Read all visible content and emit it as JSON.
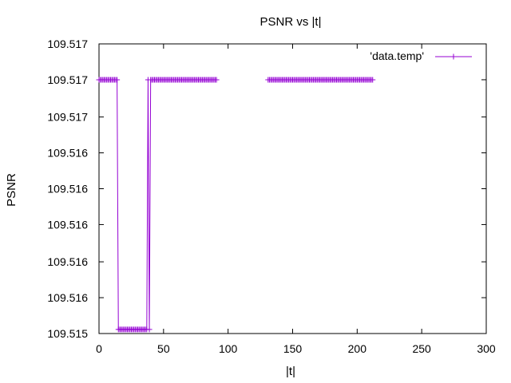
{
  "chart_data": {
    "type": "line",
    "title": "PSNR vs |t|",
    "xlabel": "|t|",
    "ylabel": "PSNR",
    "xlim": [
      0,
      300
    ],
    "ylim": [
      109.51497,
      109.51707
    ],
    "x_ticks": [
      {
        "value": 0,
        "label": "0"
      },
      {
        "value": 50,
        "label": "50"
      },
      {
        "value": 100,
        "label": "100"
      },
      {
        "value": 150,
        "label": "150"
      },
      {
        "value": 200,
        "label": "200"
      },
      {
        "value": 250,
        "label": "250"
      },
      {
        "value": 300,
        "label": "300"
      }
    ],
    "y_ticks": [
      {
        "value": 109.51497,
        "label": "109.515"
      },
      {
        "value": 109.51523,
        "label": "109.516"
      },
      {
        "value": 109.51549,
        "label": "109.516"
      },
      {
        "value": 109.51576,
        "label": "109.516"
      },
      {
        "value": 109.51602,
        "label": "109.516"
      },
      {
        "value": 109.51628,
        "label": "109.516"
      },
      {
        "value": 109.51654,
        "label": "109.517"
      },
      {
        "value": 109.51681,
        "label": "109.517"
      },
      {
        "value": 109.51707,
        "label": "109.517"
      }
    ],
    "legend_position": "top-right",
    "grid": false,
    "series": [
      {
        "name": "'data.temp'",
        "color": "#9400d3",
        "marker": "plus",
        "segments": [
          {
            "x_start": 0,
            "x_end": 15,
            "step": 1,
            "y": 109.51681
          },
          {
            "x_start": 15,
            "x_end": 38,
            "step": 1,
            "y": 109.515
          },
          {
            "x_start": 38,
            "x_end": 39,
            "step": 1,
            "y": 109.51681
          },
          {
            "x_start": 39,
            "x_end": 40,
            "step": 1,
            "y": 109.515
          },
          {
            "x_start": 40,
            "x_end": 92,
            "step": 1,
            "y": 109.51681
          },
          {
            "x_start": 131,
            "x_end": 213,
            "step": 1,
            "y": 109.51681
          }
        ]
      }
    ]
  }
}
